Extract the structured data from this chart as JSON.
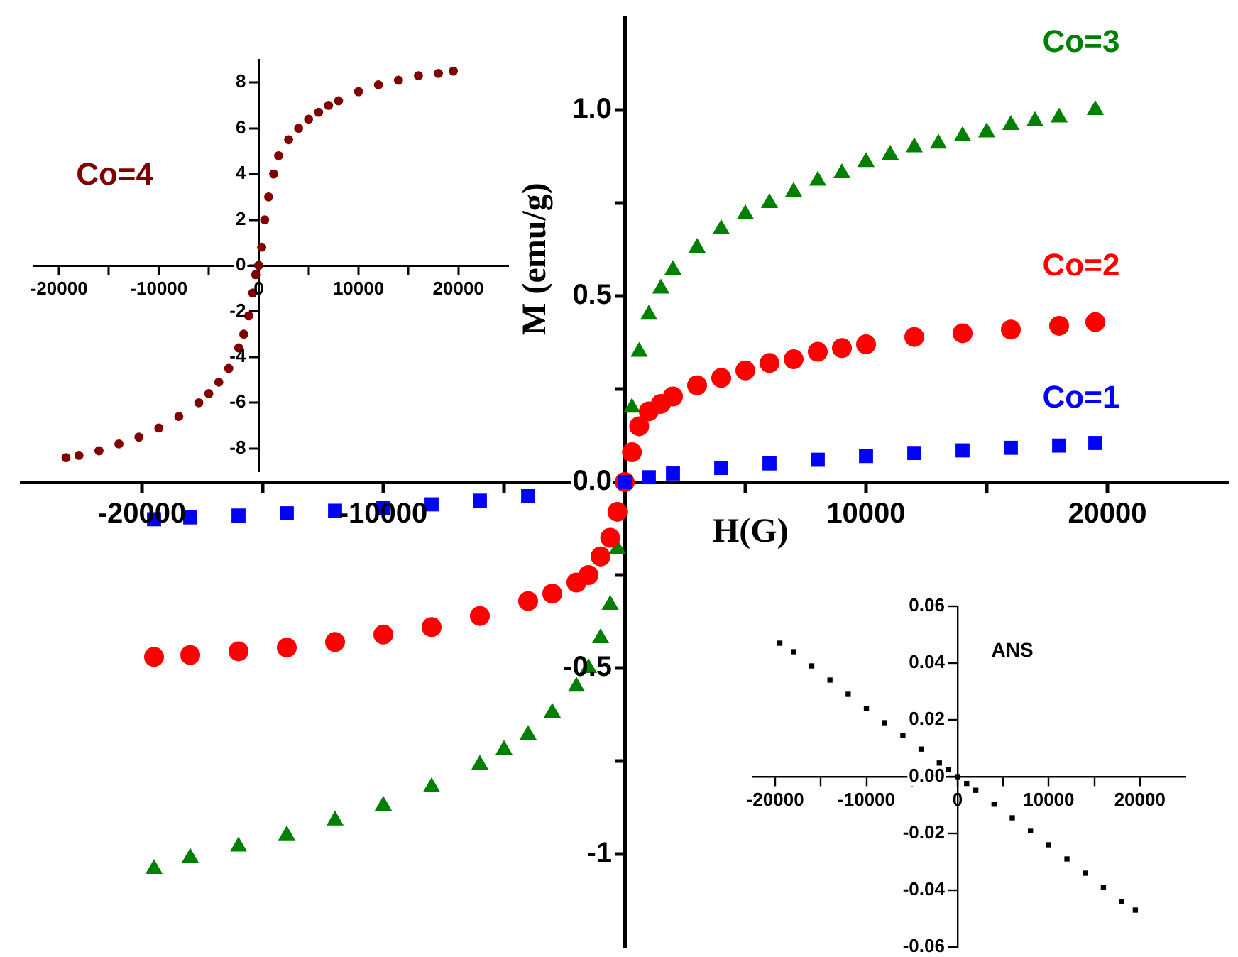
{
  "chart_data": [
    {
      "type": "scatter",
      "xlabel": "H(G)",
      "ylabel": "M (emu/g)",
      "xlim": [
        -25000,
        25000
      ],
      "ylim": [
        -1.25,
        1.25
      ],
      "xticks": [
        -20000,
        {
          "value": -15000,
          "label": null
        },
        -10000,
        {
          "value": -5000,
          "label": null
        },
        {
          "value": 5000,
          "label": null
        },
        10000,
        {
          "value": 15000,
          "label": null
        },
        20000
      ],
      "yticks": [
        -1.0,
        {
          "value": -0.75,
          "label": null
        },
        -0.5,
        {
          "value": -0.25,
          "label": null
        },
        {
          "value": 0,
          "label": "0.0"
        },
        {
          "value": 0.25,
          "label": null
        },
        0.5,
        {
          "value": 0.75,
          "label": null
        },
        {
          "value": 1,
          "label": "1.0"
        }
      ],
      "grid": false,
      "legend": false,
      "series": [
        {
          "name": "Co=1",
          "color": "#0000ff",
          "marker": "square",
          "x": [
            -19500,
            -18000,
            -16000,
            -14000,
            -12000,
            -10000,
            -8000,
            -6000,
            -4000,
            -2000,
            -1000,
            0,
            1000,
            2000,
            4000,
            6000,
            8000,
            10000,
            12000,
            14000,
            16000,
            18000,
            19500
          ],
          "values": [
            -0.1,
            -0.095,
            -0.09,
            -0.084,
            -0.077,
            -0.07,
            -0.06,
            -0.05,
            -0.038,
            null,
            null,
            0,
            0.013,
            0.023,
            0.038,
            0.05,
            0.06,
            0.07,
            0.078,
            0.085,
            0.092,
            0.098,
            0.105
          ]
        },
        {
          "name": "Co=2",
          "color": "#ff0000",
          "marker": "circle",
          "x": [
            -19500,
            -18000,
            -16000,
            -14000,
            -12000,
            -10000,
            -8000,
            -6000,
            -4000,
            -3000,
            -2000,
            -1500,
            -1000,
            -600,
            -300,
            0,
            300,
            600,
            1000,
            1500,
            2000,
            3000,
            4000,
            5000,
            6000,
            7000,
            8000,
            9000,
            10000,
            12000,
            14000,
            16000,
            18000,
            19500
          ],
          "values": [
            -0.47,
            -0.465,
            -0.455,
            -0.445,
            -0.43,
            -0.41,
            -0.39,
            -0.36,
            -0.32,
            -0.3,
            -0.27,
            -0.25,
            -0.2,
            -0.15,
            -0.08,
            0,
            0.08,
            0.15,
            0.19,
            0.21,
            0.23,
            0.26,
            0.28,
            0.3,
            0.32,
            0.33,
            0.35,
            0.36,
            0.37,
            0.39,
            0.4,
            0.41,
            0.42,
            0.43
          ]
        },
        {
          "name": "Co=3",
          "color": "#008000",
          "marker": "triangle",
          "x": [
            -19500,
            -18000,
            -16000,
            -14000,
            -12000,
            -10000,
            -8000,
            -6000,
            -5000,
            -4000,
            -3000,
            -2000,
            -1500,
            -1000,
            -600,
            -300,
            300,
            600,
            1000,
            1500,
            2000,
            3000,
            4000,
            5000,
            6000,
            7000,
            8000,
            9000,
            10000,
            11000,
            12000,
            13000,
            14000,
            15000,
            16000,
            17000,
            18000,
            19500
          ],
          "values": [
            -1.04,
            -1.01,
            -0.98,
            -0.95,
            -0.91,
            -0.87,
            -0.82,
            -0.76,
            -0.72,
            -0.68,
            -0.62,
            -0.55,
            -0.5,
            -0.42,
            -0.33,
            -0.18,
            0.2,
            0.35,
            0.45,
            0.52,
            0.57,
            0.63,
            0.68,
            0.72,
            0.75,
            0.78,
            0.81,
            0.83,
            0.86,
            0.88,
            0.9,
            0.91,
            0.93,
            0.94,
            0.96,
            0.97,
            0.98,
            1.0
          ]
        }
      ]
    },
    {
      "type": "scatter",
      "xlim": [
        -22500,
        25000
      ],
      "ylim": [
        -9,
        9
      ],
      "xticks": [
        -20000,
        {
          "value": -15000,
          "label": null
        },
        -10000,
        {
          "value": -5000,
          "label": null
        },
        0,
        {
          "value": 5000,
          "label": null
        },
        10000,
        {
          "value": 15000,
          "label": null
        },
        20000
      ],
      "yticks": [
        -8,
        -6,
        -4,
        -2,
        0,
        2,
        4,
        6,
        8
      ],
      "grid": false,
      "legend": false,
      "series": [
        {
          "name": "Co=4",
          "color": "#800000",
          "marker": "circle",
          "x": [
            -19300,
            -18000,
            -16000,
            -14000,
            -12000,
            -10000,
            -8000,
            -6000,
            -5000,
            -4000,
            -3000,
            -2000,
            -1500,
            -1000,
            -600,
            -300,
            0,
            300,
            600,
            1000,
            1500,
            2000,
            3000,
            4000,
            5000,
            6000,
            7000,
            8000,
            10000,
            12000,
            14000,
            16000,
            18000,
            19500
          ],
          "values": [
            -8.4,
            -8.3,
            -8.1,
            -7.8,
            -7.5,
            -7.1,
            -6.6,
            -6.0,
            -5.6,
            -5.1,
            -4.5,
            -3.6,
            -3.0,
            -2.2,
            -1.2,
            -0.4,
            0,
            0.8,
            2.0,
            3.0,
            4.0,
            4.8,
            5.5,
            6.0,
            6.4,
            6.7,
            7.0,
            7.2,
            7.6,
            7.9,
            8.1,
            8.3,
            8.4,
            8.5
          ]
        }
      ]
    },
    {
      "type": "scatter",
      "xlim": [
        -22500,
        25000
      ],
      "ylim": [
        -0.06,
        0.06
      ],
      "xticks": [
        -20000,
        {
          "value": -15000,
          "label": null
        },
        -10000,
        {
          "value": -5000,
          "label": null
        },
        0,
        {
          "value": 5000,
          "label": null
        },
        10000,
        {
          "value": 15000,
          "label": null
        },
        20000
      ],
      "yticks": [
        -0.06,
        -0.04,
        -0.02,
        {
          "value": 0,
          "label": "0.00"
        },
        0.02,
        0.04,
        0.06
      ],
      "grid": false,
      "legend": false,
      "series": [
        {
          "name": "ANS",
          "color": "#000000",
          "marker": "square",
          "x": [
            -19500,
            -18000,
            -16000,
            -14000,
            -12000,
            -10000,
            -8000,
            -6000,
            -4000,
            -2000,
            -1000,
            0,
            1000,
            2000,
            4000,
            6000,
            8000,
            10000,
            12000,
            14000,
            16000,
            18000,
            19500
          ],
          "values": [
            0.047,
            0.044,
            0.039,
            0.034,
            0.029,
            0.024,
            0.019,
            0.0145,
            0.0097,
            0.0048,
            0.0024,
            0,
            -0.0024,
            -0.0048,
            -0.0097,
            -0.0145,
            -0.019,
            -0.024,
            -0.029,
            -0.034,
            -0.039,
            -0.044,
            -0.047
          ]
        }
      ]
    }
  ]
}
